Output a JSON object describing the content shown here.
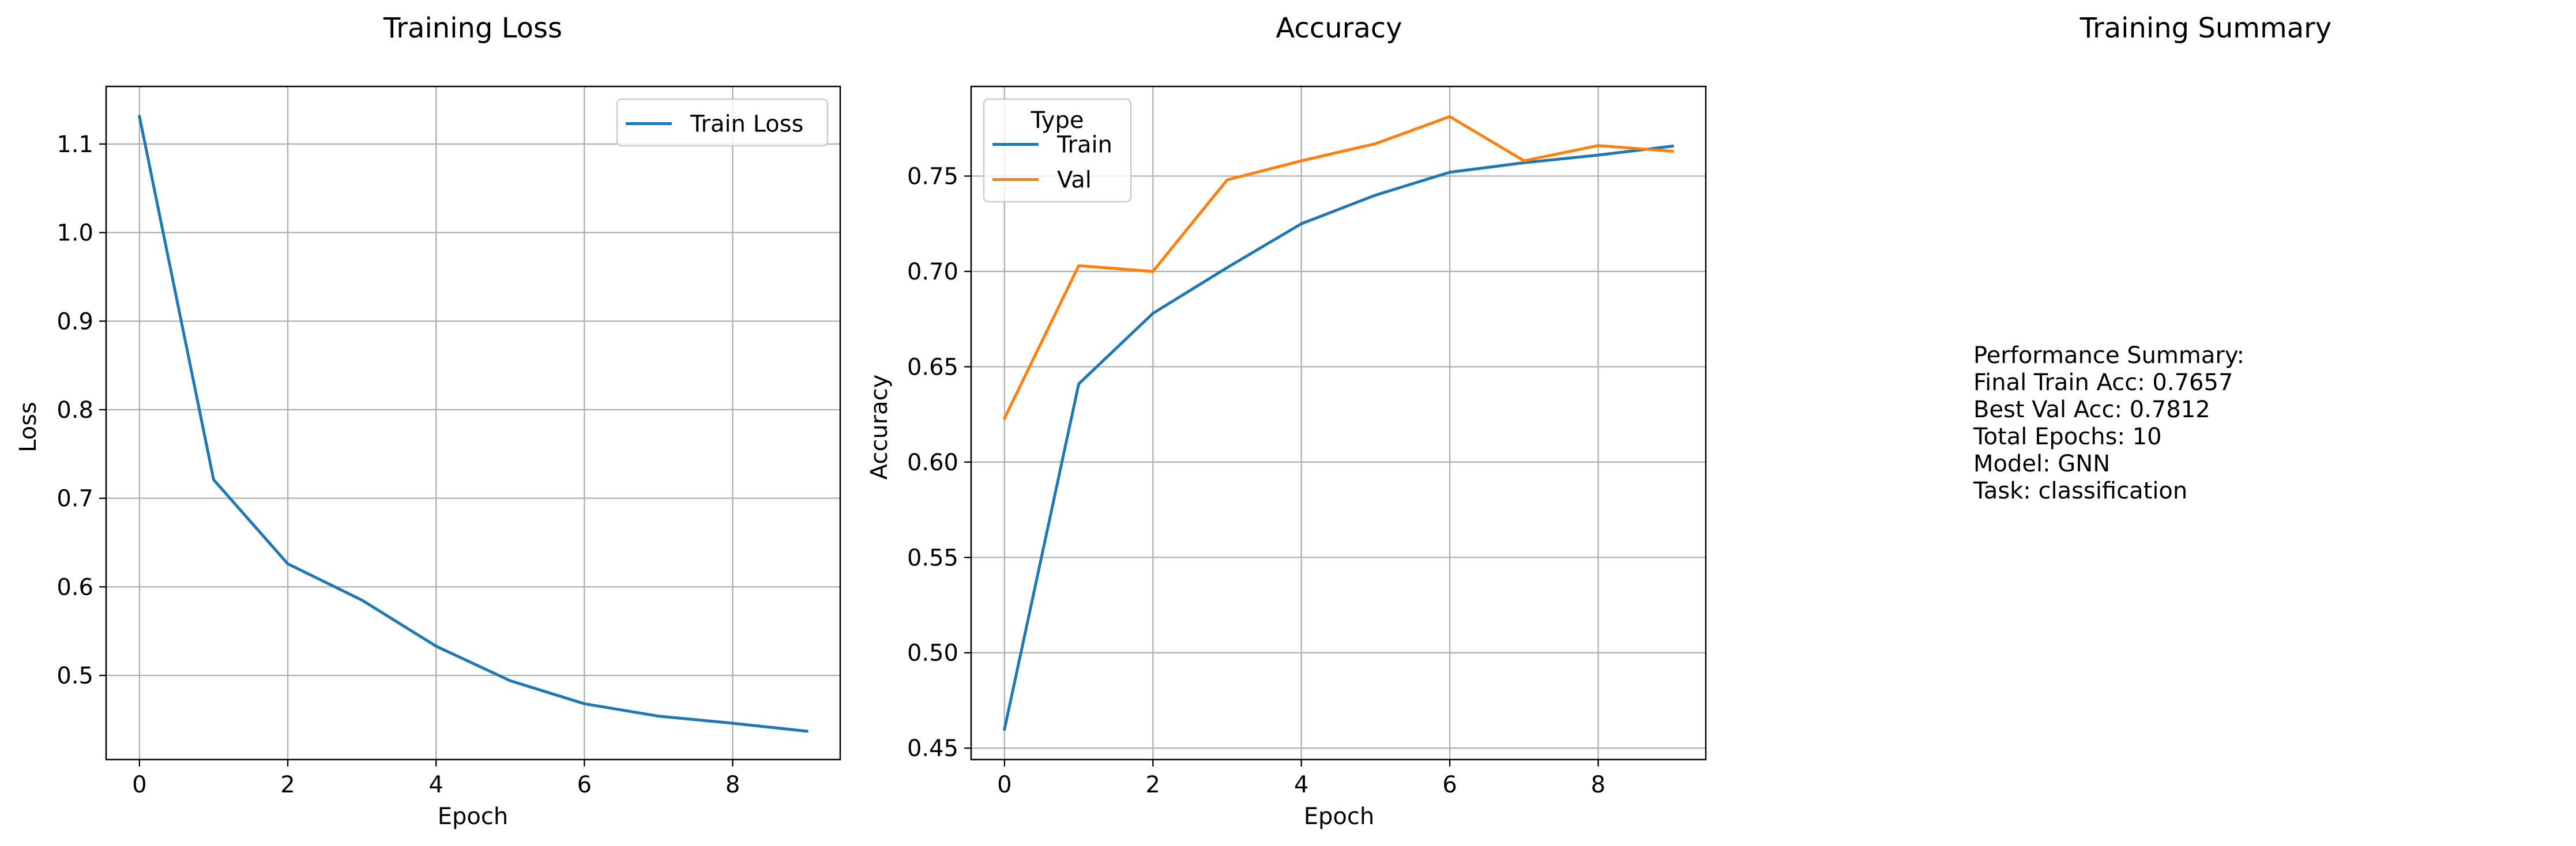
{
  "chart_data": [
    {
      "type": "line",
      "title": "Training Loss",
      "xlabel": "Epoch",
      "ylabel": "Loss",
      "x": [
        0,
        1,
        2,
        3,
        4,
        5,
        6,
        7,
        8,
        9
      ],
      "xlim": [
        -0.45,
        9.45
      ],
      "ylim": [
        0.405,
        1.165
      ],
      "xticks": [
        0,
        2,
        4,
        6,
        8
      ],
      "yticks": [
        0.5,
        0.6,
        0.7,
        0.8,
        0.9,
        1.0,
        1.1
      ],
      "ytick_labels": [
        "0.5",
        "0.6",
        "0.7",
        "0.8",
        "0.9",
        "1.0",
        "1.1"
      ],
      "grid": true,
      "legend_placement": "upper right",
      "series": [
        {
          "name": "Train Loss",
          "color": "#1f77b4",
          "values": [
            1.131,
            0.721,
            0.626,
            0.585,
            0.533,
            0.494,
            0.468,
            0.454,
            0.446,
            0.437
          ]
        }
      ]
    },
    {
      "type": "line",
      "title": "Accuracy",
      "xlabel": "Epoch",
      "ylabel": "Accuracy",
      "x": [
        0,
        1,
        2,
        3,
        4,
        5,
        6,
        7,
        8,
        9
      ],
      "xlim": [
        -0.45,
        9.45
      ],
      "ylim": [
        0.444,
        0.797
      ],
      "xticks": [
        0,
        2,
        4,
        6,
        8
      ],
      "yticks": [
        0.45,
        0.5,
        0.55,
        0.6,
        0.65,
        0.7,
        0.75
      ],
      "ytick_labels": [
        "0.45",
        "0.50",
        "0.55",
        "0.60",
        "0.65",
        "0.70",
        "0.75"
      ],
      "grid": true,
      "legend_placement": "upper left",
      "legend_title": "Type",
      "series": [
        {
          "name": "Train",
          "color": "#1f77b4",
          "values": [
            0.46,
            0.641,
            0.678,
            0.702,
            0.725,
            0.74,
            0.752,
            0.757,
            0.761,
            0.7657
          ]
        },
        {
          "name": "Val",
          "color": "#ff7f0e",
          "values": [
            0.623,
            0.703,
            0.7,
            0.748,
            0.758,
            0.767,
            0.7812,
            0.758,
            0.766,
            0.763
          ]
        }
      ]
    }
  ],
  "summary": {
    "title": "Training Summary",
    "lines": [
      "Performance Summary:",
      "Final Train Acc: 0.7657",
      "Best Val Acc: 0.7812",
      "Total Epochs: 10",
      "Model: GNN",
      "Task: classification"
    ]
  }
}
